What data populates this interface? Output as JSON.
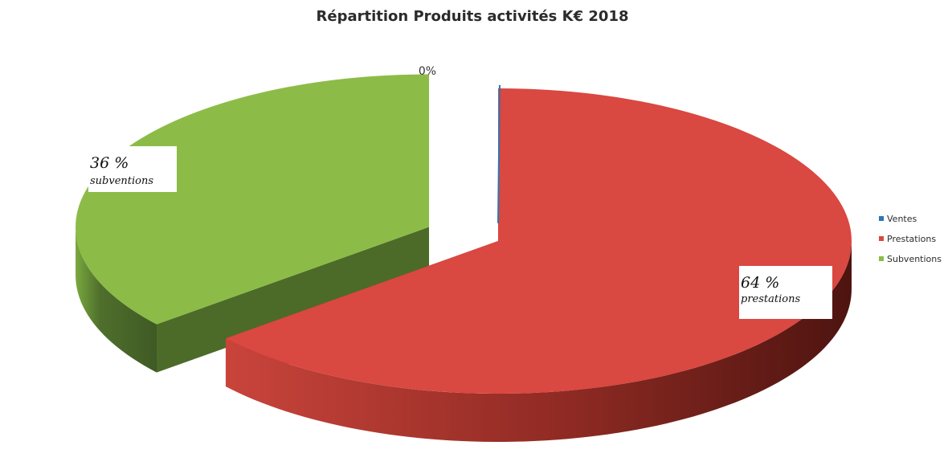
{
  "chart_data": {
    "type": "pie",
    "title": "Répartition Produits activités K€ 2018",
    "categories": [
      "Ventes",
      "Prestations",
      "Subventions"
    ],
    "values": [
      0,
      64,
      36
    ],
    "colors": [
      "#2e75b6",
      "#d94841",
      "#8cbc47"
    ],
    "side_colors": [
      "#1f4f7a",
      "#8a2a22",
      "#4c6b29"
    ],
    "data_labels": {
      "ventes": "0%",
      "prestations_pct": "64 %",
      "prestations_name": "prestations",
      "subventions_pct": "36 %",
      "subventions_name": "subventions"
    },
    "legend_position": "right",
    "style": "3d-exploded"
  }
}
